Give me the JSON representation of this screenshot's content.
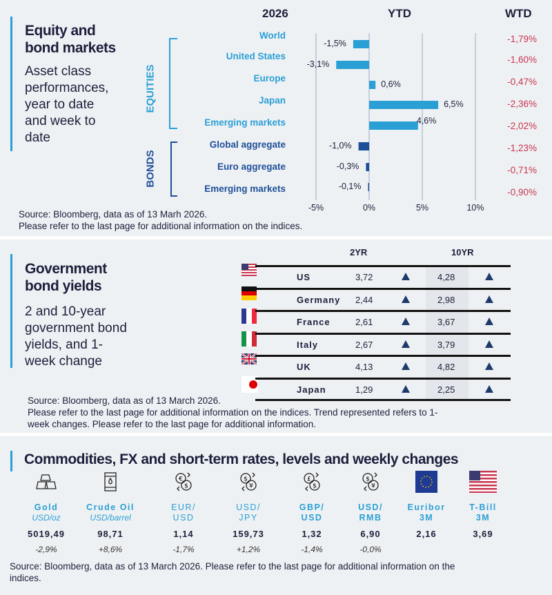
{
  "equity": {
    "title": "Equity and bond markets",
    "title_lines": [
      "Equity and",
      "bond markets"
    ],
    "subtitle_lines": [
      "Asset class",
      "performances,",
      "year to date",
      "and week to",
      "date"
    ],
    "year": "2026",
    "ytd_header": "YTD",
    "wtd_header": "WTD",
    "group_equities": "EQUITIES",
    "group_bonds": "BONDS",
    "source_lines": [
      "Source: Bloomberg, data as of 13 Marh 2026.",
      "Please refer to the last page for additional information on the indices."
    ]
  },
  "chart_data": {
    "type": "bar",
    "orientation": "horizontal",
    "categories": [
      "World",
      "United States",
      "Europe",
      "Japan",
      "Emerging  markets",
      "Global aggregate",
      "Euro aggregate",
      "Emerging  markets"
    ],
    "groups": [
      "EQUITIES",
      "EQUITIES",
      "EQUITIES",
      "EQUITIES",
      "EQUITIES",
      "BONDS",
      "BONDS",
      "BONDS"
    ],
    "values": [
      -1.5,
      -3.1,
      0.6,
      6.5,
      4.6,
      -1.0,
      -0.3,
      -0.1
    ],
    "value_labels": [
      "-1,5%",
      "-3,1%",
      "0,6%",
      "6,5%",
      "4,6%",
      "-1,0%",
      "-0,3%",
      "-0,1%"
    ],
    "wtd_labels": [
      "-1,79%",
      "-1,60%",
      "-0,47%",
      "-2,36%",
      "-2,02%",
      "-1,23%",
      "-0,71%",
      "-0,90%"
    ],
    "xlim": [
      -5,
      10
    ],
    "xticks": [
      "-5%",
      "0%",
      "5%",
      "10%"
    ],
    "xtick_values": [
      -5,
      0,
      5,
      10
    ],
    "grid": true,
    "colors": {
      "equities": "#2a9fd6",
      "bonds": "#1e4f9a",
      "wtd": "#c8344f"
    }
  },
  "bonds": {
    "title_lines": [
      "Government",
      "bond yields"
    ],
    "subtitle_lines": [
      "2 and 10-year",
      "government bond",
      "yields, and 1-",
      "week change"
    ],
    "col_2yr": "2YR",
    "col_10yr": "10YR",
    "rows": [
      {
        "flag": "us-flag",
        "country": "US",
        "y2": "3,72",
        "y10": "4,28",
        "trend2": "up",
        "trend10": "up"
      },
      {
        "flag": "germany-flag",
        "country": "Germany",
        "y2": "2,44",
        "y10": "2,98",
        "trend2": "up",
        "trend10": "up"
      },
      {
        "flag": "france-flag",
        "country": "France",
        "y2": "2,61",
        "y10": "3,67",
        "trend2": "up",
        "trend10": "up"
      },
      {
        "flag": "italy-flag",
        "country": "Italy",
        "y2": "2,67",
        "y10": "3,79",
        "trend2": "up",
        "trend10": "up"
      },
      {
        "flag": "uk-flag",
        "country": "UK",
        "y2": "4,13",
        "y10": "4,82",
        "trend2": "up",
        "trend10": "up"
      },
      {
        "flag": "japan-flag",
        "country": "Japan",
        "y2": "1,29",
        "y10": "2,25",
        "trend2": "up",
        "trend10": "up"
      }
    ],
    "source_lines": [
      "Source: Bloomberg, data as of 13  March 2026.",
      "Please refer to the last page for additional information on the indices. Trend represented refers to 1-",
      "week changes. Please refer to the last page for additional information."
    ]
  },
  "commodities": {
    "title": "Commodities, FX and short-term rates, levels and weekly changes",
    "items": [
      {
        "icon": "gold-bars-icon",
        "label": "Gold",
        "unit": "USD/oz",
        "value": "5019,49",
        "change": "-2,9%"
      },
      {
        "icon": "oil-barrel-icon",
        "label": "Crude Oil",
        "unit": "USD/barrel",
        "value": "98,71",
        "change": "+8,6%"
      },
      {
        "icon": "euro-dollar-exchange-icon",
        "label": "EUR/ USD",
        "label_lines": [
          "EUR/",
          "USD"
        ],
        "value": "1,14",
        "change": "-1,7%"
      },
      {
        "icon": "dollar-yen-exchange-icon",
        "label_lines": [
          "USD/",
          "JPY"
        ],
        "value": "159,73",
        "change": "+1,2%"
      },
      {
        "icon": "pound-dollar-exchange-icon",
        "label_lines": [
          "GBP/",
          "USD"
        ],
        "value": "1,32",
        "change": "-1,4%"
      },
      {
        "icon": "dollar-yuan-exchange-icon",
        "label_lines": [
          "USD/",
          "RMB"
        ],
        "value": "6,90",
        "change": "-0,0%"
      },
      {
        "icon": "eu-flag",
        "label_lines": [
          "Euribor",
          "3M"
        ],
        "value": "2,16",
        "change": ""
      },
      {
        "icon": "us-flag",
        "label_lines": [
          "T-Bill",
          "3M"
        ],
        "value": "3,69",
        "change": ""
      }
    ],
    "source_lines": [
      "Source: Bloomberg, data as of 13 March 2026. Please refer to the last page for additional information on the",
      "indices."
    ]
  }
}
